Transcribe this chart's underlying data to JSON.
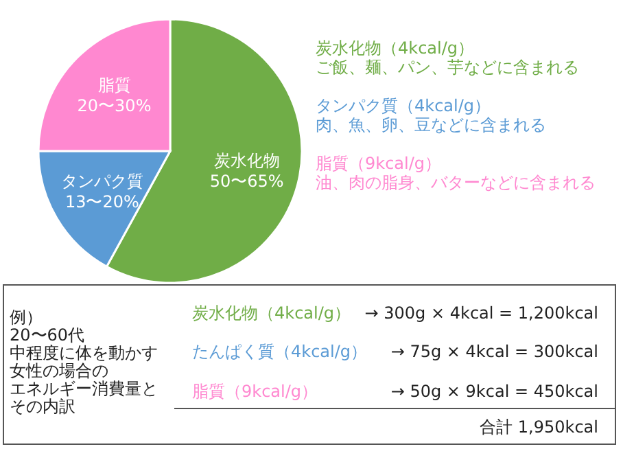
{
  "chart_data": {
    "type": "pie",
    "categories": [
      "炭水化物\n50〜65%",
      "タンパク質\n13〜20%",
      "脂質\n20〜30%"
    ],
    "values": [
      58,
      17,
      25
    ],
    "colors": [
      "#70ad47",
      "#5b9bd5",
      "#ff88d0"
    ],
    "legend": false,
    "annotations": [
      "炭水化物（4kcal/g）",
      "ご飯、麺、パン、芋などに含まれる",
      "タンパク質（4kcal/g）",
      "肉、魚、卵、豆などに含まれる",
      "脂質（9kcal/g）",
      "油、肉の脂身、バターなどに含まれる",
      "例）",
      "20〜60代",
      "中程度に体を動かす",
      "女性の場合の",
      "エネルギー消費量と",
      "その内訳",
      "炭水化物（4kcal/g）",
      "→ 300g × 4kcal = 1,200kcal",
      "たんぱく質（4kcal/g）",
      "→ 75g × 4kcal = 300kcal",
      "脂質（9kcal/g）",
      "→ 50g × 9kcal = 450kcal",
      "合計 1,950kcal"
    ]
  }
}
